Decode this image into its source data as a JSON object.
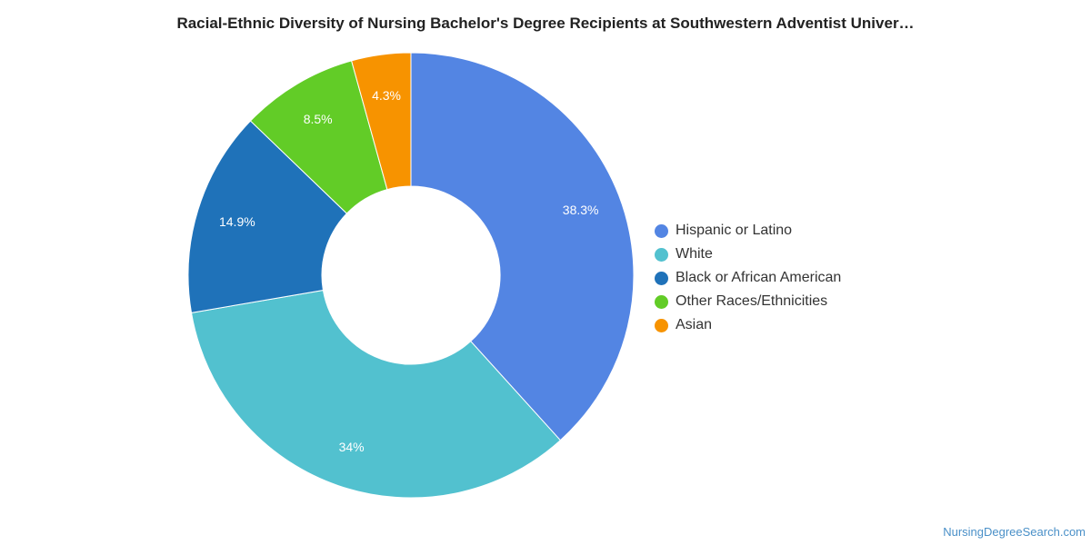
{
  "chart_data": {
    "type": "pie",
    "variant": "donut",
    "title": "Racial-Ethnic Diversity of Nursing Bachelor's Degree Recipients at Southwestern Adventist Univer…",
    "categories": [
      "Hispanic or Latino",
      "White",
      "Black or African American",
      "Other Races/Ethnicities",
      "Asian"
    ],
    "values": [
      38.3,
      34,
      14.9,
      8.5,
      4.3
    ],
    "data_labels": [
      "38.3%",
      "34%",
      "14.9%",
      "8.5%",
      "4.3%"
    ],
    "colors": [
      "#5385e3",
      "#52c1cf",
      "#1f72b9",
      "#62cc27",
      "#f79300"
    ],
    "legend_position": "right",
    "start_angle": "top, clockwise"
  },
  "footer": {
    "credit": "NursingDegreeSearch.com"
  }
}
